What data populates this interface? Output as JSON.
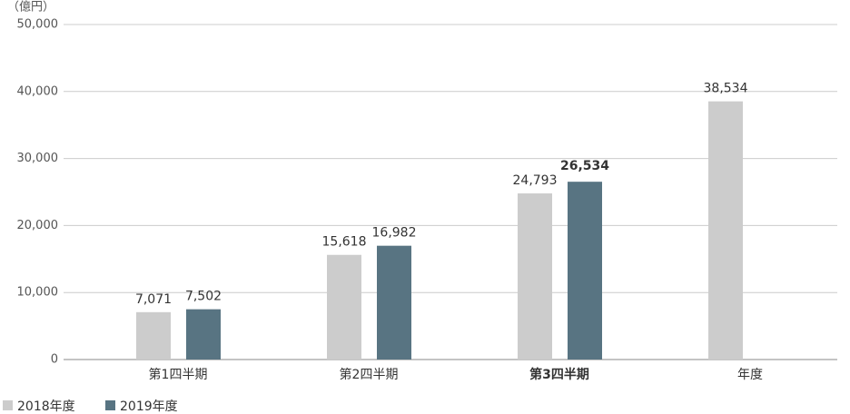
{
  "chart_data": {
    "type": "bar",
    "unit_label": "（億円）",
    "categories": [
      "第1四半期",
      "第2四半期",
      "第3四半期",
      "年度"
    ],
    "highlight_index": 2,
    "series": [
      {
        "name": "2018年度",
        "color": "#cccccc",
        "values": [
          7071,
          15618,
          24793,
          38534
        ],
        "value_labels": [
          "7,071",
          "15,618",
          "24,793",
          "38,534"
        ]
      },
      {
        "name": "2019年度",
        "color": "#587482",
        "values": [
          7502,
          16982,
          26534,
          null
        ],
        "value_labels": [
          "7,502",
          "16,982",
          "26,534",
          null
        ]
      }
    ],
    "ylim": [
      0,
      50000
    ],
    "yticks": [
      0,
      {
        "value": 10000,
        "label": "10,000"
      },
      {
        "value": 20000,
        "label": "20,000"
      },
      {
        "value": 30000,
        "label": "30,000"
      },
      {
        "value": 40000,
        "label": "40,000"
      },
      {
        "value": 50000,
        "label": "50,000"
      }
    ],
    "grid": true,
    "legend": "bottom-left"
  }
}
